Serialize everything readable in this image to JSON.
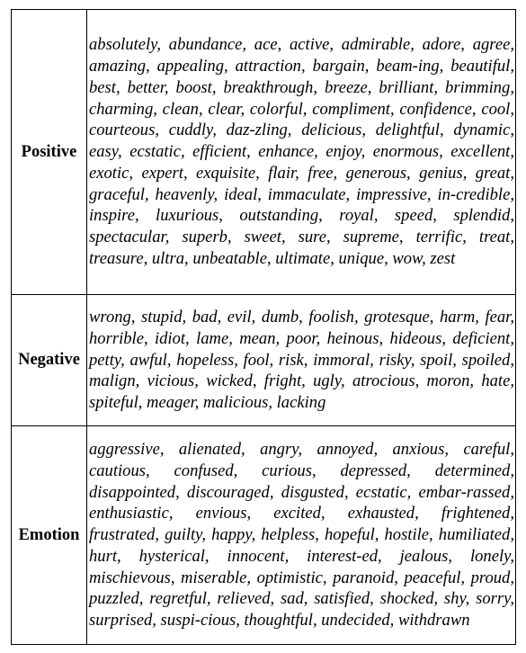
{
  "rows": [
    {
      "category": "Positive",
      "words": "absolutely, abundance, ace, active, admirable, adore, agree, amazing, appealing, attraction, bargain, beam-ing, beautiful, best, better, boost, breakthrough, breeze, brilliant, brimming, charming, clean, clear, colorful, compliment, confidence, cool, courteous, cuddly, daz-zling, delicious, delightful, dynamic, easy, ecstatic, efficient, enhance, enjoy, enormous, excellent, exotic, expert, exquisite, flair, free, generous, genius, great, graceful, heavenly, ideal, immaculate, impressive, in-credible, inspire, luxurious, outstanding, royal, speed, splendid, spectacular, superb, sweet, sure, supreme, terrific, treat, treasure, ultra, unbeatable, ultimate, unique, wow, zest"
    },
    {
      "category": "Negative",
      "words": "wrong, stupid, bad, evil, dumb, foolish, grotesque, harm, fear, horrible, idiot, lame, mean, poor, heinous, hideous, deficient, petty, awful, hopeless, fool, risk, immoral, risky, spoil, spoiled, malign, vicious, wicked, fright, ugly, atrocious, moron, hate, spiteful, meager, malicious, lacking"
    },
    {
      "category": "Emotion",
      "words": "aggressive, alienated, angry, annoyed, anxious, careful, cautious, confused, curious, depressed, determined, disappointed, discouraged, disgusted, ecstatic, embar-rassed, enthusiastic, envious, excited, exhausted, frightened, frustrated, guilty, happy, helpless, hopeful, hostile, humiliated, hurt, hysterical, innocent, interest-ed, jealous, lonely, mischievous, miserable, optimistic, paranoid, peaceful, proud, puzzled, regretful, relieved, sad, satisfied, shocked, shy, sorry, surprised, suspi-cious, thoughtful, undecided, withdrawn"
    }
  ]
}
